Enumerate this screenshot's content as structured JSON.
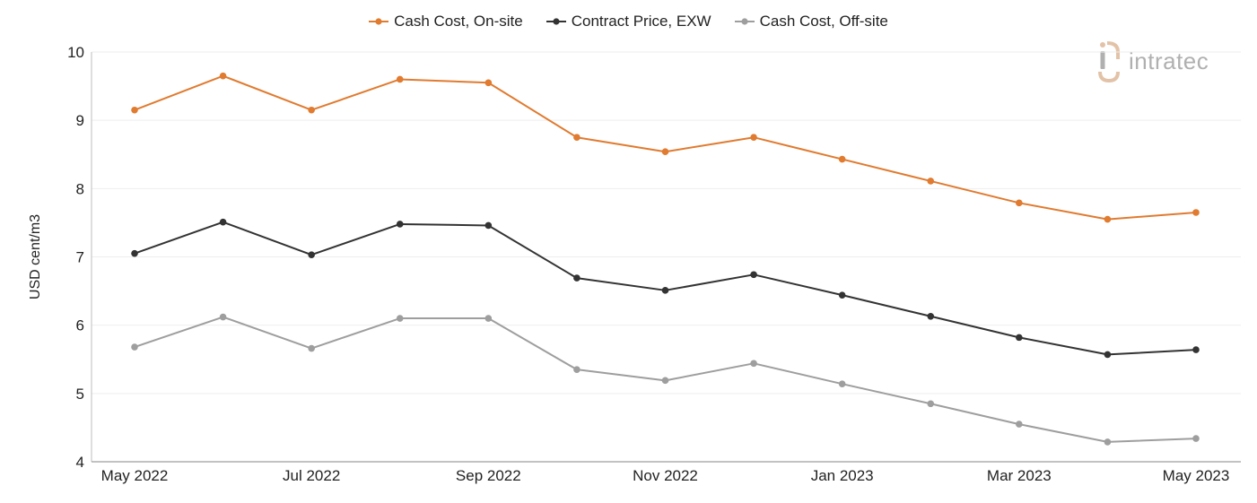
{
  "logo": {
    "text": "intratec",
    "accent_color": "#e3c3a8",
    "text_color": "#b0b0b0"
  },
  "chart_data": {
    "type": "line",
    "categories": [
      "May 2022",
      "Jun 2022",
      "Jul 2022",
      "Aug 2022",
      "Sep 2022",
      "Oct 2022",
      "Nov 2022",
      "Dec 2022",
      "Jan 2023",
      "Feb 2023",
      "Mar 2023",
      "Apr 2023",
      "May 2023"
    ],
    "x_tick_labels": [
      "May 2022",
      "",
      "Jul 2022",
      "",
      "Sep 2022",
      "",
      "Nov 2022",
      "",
      "Jan 2023",
      "",
      "Mar 2023",
      "",
      "May 2023"
    ],
    "series": [
      {
        "name": "Cash Cost, On-site",
        "color": "#e07b30",
        "values": [
          9.15,
          9.65,
          9.15,
          9.6,
          9.55,
          8.75,
          8.54,
          8.75,
          8.43,
          8.11,
          7.79,
          7.55,
          7.65
        ]
      },
      {
        "name": "Contract Price, EXW",
        "color": "#333333",
        "values": [
          7.05,
          7.51,
          7.03,
          7.48,
          7.46,
          6.69,
          6.51,
          6.74,
          6.44,
          6.13,
          5.82,
          5.57,
          5.64
        ]
      },
      {
        "name": "Cash Cost, Off-site",
        "color": "#9e9e9e",
        "values": [
          5.68,
          6.12,
          5.66,
          6.1,
          6.1,
          5.35,
          5.19,
          5.44,
          5.14,
          4.85,
          4.55,
          4.29,
          4.34
        ]
      }
    ],
    "title": "",
    "xlabel": "",
    "ylabel": "USD cent/m3",
    "ylim": [
      4,
      10
    ],
    "yticks": [
      4,
      5,
      6,
      7,
      8,
      9,
      10
    ],
    "grid": true,
    "legend_position": "top-center"
  }
}
